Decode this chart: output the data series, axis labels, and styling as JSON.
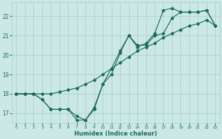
{
  "xlabel": "Humidex (Indice chaleur)",
  "bg_color": "#cce8e4",
  "grid_color": "#aacfca",
  "line_color": "#1a6b58",
  "xlim": [
    -0.5,
    23.5
  ],
  "ylim": [
    16.5,
    22.7
  ],
  "xticks": [
    0,
    1,
    2,
    3,
    4,
    5,
    6,
    7,
    8,
    9,
    10,
    11,
    12,
    13,
    14,
    15,
    16,
    17,
    18,
    19,
    20,
    21,
    22,
    23
  ],
  "yticks": [
    17,
    18,
    19,
    20,
    21,
    22
  ],
  "line1_x": [
    0,
    1,
    2,
    3,
    4,
    5,
    6,
    7,
    8,
    9,
    10,
    11,
    12,
    13,
    14,
    15,
    16,
    17,
    18,
    19,
    20,
    21,
    22,
    23
  ],
  "line1_y": [
    18.0,
    18.0,
    18.0,
    18.0,
    18.0,
    18.1,
    18.2,
    18.3,
    18.5,
    18.7,
    19.0,
    19.3,
    19.6,
    19.9,
    20.2,
    20.4,
    20.6,
    20.9,
    21.1,
    21.3,
    21.5,
    21.6,
    21.8,
    21.5
  ],
  "line2_x": [
    0,
    1,
    2,
    3,
    4,
    5,
    6,
    7,
    8,
    9,
    10,
    11,
    12,
    13,
    14,
    15,
    16,
    17,
    18,
    19,
    20,
    21,
    22,
    23
  ],
  "line2_y": [
    18.0,
    18.0,
    18.0,
    17.7,
    17.2,
    17.2,
    17.2,
    16.85,
    16.65,
    17.3,
    18.5,
    19.3,
    20.2,
    21.0,
    20.5,
    20.5,
    21.0,
    21.1,
    21.9,
    22.2,
    22.2,
    22.2,
    22.3,
    21.5
  ],
  "line3_x": [
    0,
    1,
    2,
    3,
    4,
    5,
    6,
    7,
    8,
    9,
    10,
    11,
    12,
    13,
    14,
    15,
    16,
    17,
    18,
    19,
    20,
    21,
    22,
    23
  ],
  "line3_y": [
    18.0,
    18.0,
    18.0,
    17.7,
    17.2,
    17.2,
    17.2,
    16.65,
    16.65,
    17.2,
    18.5,
    19.0,
    20.1,
    21.0,
    20.4,
    20.6,
    21.1,
    22.3,
    22.4,
    22.2,
    22.2,
    22.2,
    22.3,
    21.5
  ]
}
